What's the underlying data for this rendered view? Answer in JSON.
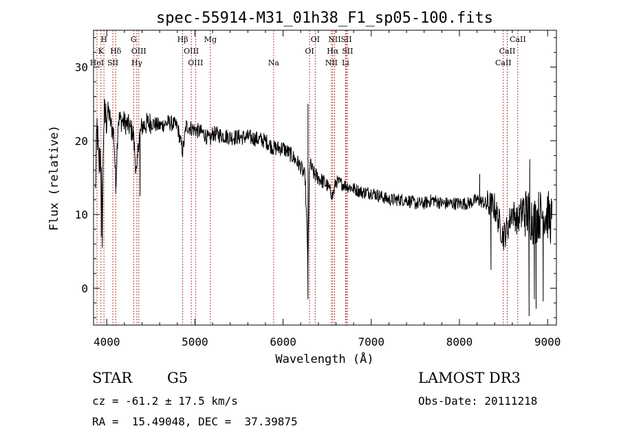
{
  "chart_data": {
    "type": "line",
    "title": "spec-55914-M31_01h38_F1_sp05-100.fits",
    "xlabel": "Wavelength (Å)",
    "ylabel": "Flux (relative)",
    "xlim": [
      3850,
      9100
    ],
    "ylim": [
      -5,
      35
    ],
    "xticks": [
      "4000",
      "5000",
      "6000",
      "7000",
      "8000",
      "9000"
    ],
    "yticks": [
      "0",
      "10",
      "20",
      "30"
    ],
    "grid": false,
    "line_color": "#000000",
    "marker_color": "#aa2222",
    "spectrum_anchors": [
      [
        3870,
        13
      ],
      [
        3890,
        22
      ],
      [
        3910,
        16
      ],
      [
        3930,
        19
      ],
      [
        3950,
        8
      ],
      [
        3965,
        23
      ],
      [
        3990,
        23
      ],
      [
        4020,
        24
      ],
      [
        4050,
        22
      ],
      [
        4080,
        21
      ],
      [
        4102,
        14
      ],
      [
        4130,
        23
      ],
      [
        4200,
        22.5
      ],
      [
        4250,
        22
      ],
      [
        4300,
        21
      ],
      [
        4340,
        15
      ],
      [
        4360,
        20
      ],
      [
        4400,
        22
      ],
      [
        4500,
        22.5
      ],
      [
        4600,
        22
      ],
      [
        4700,
        22.5
      ],
      [
        4800,
        22
      ],
      [
        4861,
        18.5
      ],
      [
        4900,
        22
      ],
      [
        5000,
        21.5
      ],
      [
        5100,
        21
      ],
      [
        5172,
        20
      ],
      [
        5200,
        21
      ],
      [
        5400,
        20.5
      ],
      [
        5600,
        20.5
      ],
      [
        5800,
        20
      ],
      [
        5893,
        19
      ],
      [
        6000,
        19
      ],
      [
        6100,
        18
      ],
      [
        6200,
        16.5
      ],
      [
        6250,
        15
      ],
      [
        6283,
        3
      ],
      [
        6300,
        17
      ],
      [
        6350,
        15.5
      ],
      [
        6450,
        14.5
      ],
      [
        6500,
        14
      ],
      [
        6563,
        12.5
      ],
      [
        6600,
        14.5
      ],
      [
        6700,
        14
      ],
      [
        6800,
        13.5
      ],
      [
        6900,
        13
      ],
      [
        7000,
        13
      ],
      [
        7100,
        12.5
      ],
      [
        7200,
        12
      ],
      [
        7300,
        12
      ],
      [
        7400,
        12
      ],
      [
        7500,
        11.5
      ],
      [
        7600,
        11.5
      ],
      [
        7700,
        12
      ],
      [
        7800,
        11.5
      ],
      [
        7900,
        11.5
      ],
      [
        8000,
        11.5
      ],
      [
        8100,
        11.5
      ],
      [
        8200,
        12
      ],
      [
        8300,
        11.5
      ],
      [
        8400,
        11
      ],
      [
        8498,
        7
      ],
      [
        8542,
        8
      ],
      [
        8600,
        10.5
      ],
      [
        8662,
        9
      ],
      [
        8700,
        10.5
      ],
      [
        8800,
        10
      ],
      [
        8850,
        9
      ],
      [
        8900,
        10
      ],
      [
        9000,
        10
      ],
      [
        9050,
        9
      ]
    ],
    "spectrum_spikes": [
      [
        6283,
        -1.5
      ],
      [
        6283,
        25.0
      ],
      [
        8360,
        2.5
      ],
      [
        8790,
        -3.8
      ],
      [
        8850,
        -1.5
      ],
      [
        8870,
        -2.8
      ],
      [
        8230,
        15.5
      ],
      [
        8800,
        17.5
      ],
      [
        8950,
        -1.8
      ],
      [
        4102,
        12.8
      ],
      [
        4380,
        12.5
      ],
      [
        4861,
        18.0
      ],
      [
        3940,
        7.0
      ]
    ],
    "lines": [
      {
        "name": "K",
        "x": 3934,
        "row": 1
      },
      {
        "name": "H",
        "x": 3968,
        "row": 0
      },
      {
        "name": "HeI",
        "x": 3889,
        "row": 2
      },
      {
        "name": "SII",
        "x": 4069,
        "row": 2
      },
      {
        "name": "Hδ",
        "x": 4102,
        "row": 1
      },
      {
        "name": "G",
        "x": 4305,
        "row": 0
      },
      {
        "name": "OIII",
        "x": 4363,
        "row": 1
      },
      {
        "name": "Hγ",
        "x": 4341,
        "row": 2
      },
      {
        "name": "Hβ",
        "x": 4861,
        "row": 0
      },
      {
        "name": "OIII",
        "x": 4959,
        "row": 1
      },
      {
        "name": "OIII",
        "x": 5007,
        "row": 2
      },
      {
        "name": "Mg",
        "x": 5175,
        "row": 0
      },
      {
        "name": "Na",
        "x": 5893,
        "row": 2
      },
      {
        "name": "OI",
        "x": 6300,
        "row": 1
      },
      {
        "name": "OI",
        "x": 6364,
        "row": 0
      },
      {
        "name": "NII",
        "x": 6548,
        "row": 2
      },
      {
        "name": "NII",
        "x": 6584,
        "row": 0
      },
      {
        "name": "Hα",
        "x": 6563,
        "row": 1
      },
      {
        "name": "SII",
        "x": 6717,
        "row": 0
      },
      {
        "name": "SII",
        "x": 6731,
        "row": 1
      },
      {
        "name": "Li",
        "x": 6708,
        "row": 2
      },
      {
        "name": "CaII",
        "x": 8498,
        "row": 2
      },
      {
        "name": "CaII",
        "x": 8542,
        "row": 1
      },
      {
        "name": "CaII",
        "x": 8662,
        "row": 0
      }
    ]
  },
  "info": {
    "class": "STAR",
    "subclass": "G5",
    "survey": "LAMOST DR3",
    "cz": "cz = -61.2 ± 17.5 km/s",
    "obs_date": "Obs-Date: 20111218",
    "coords": "RA =  15.49048, DEC =  37.39875"
  }
}
